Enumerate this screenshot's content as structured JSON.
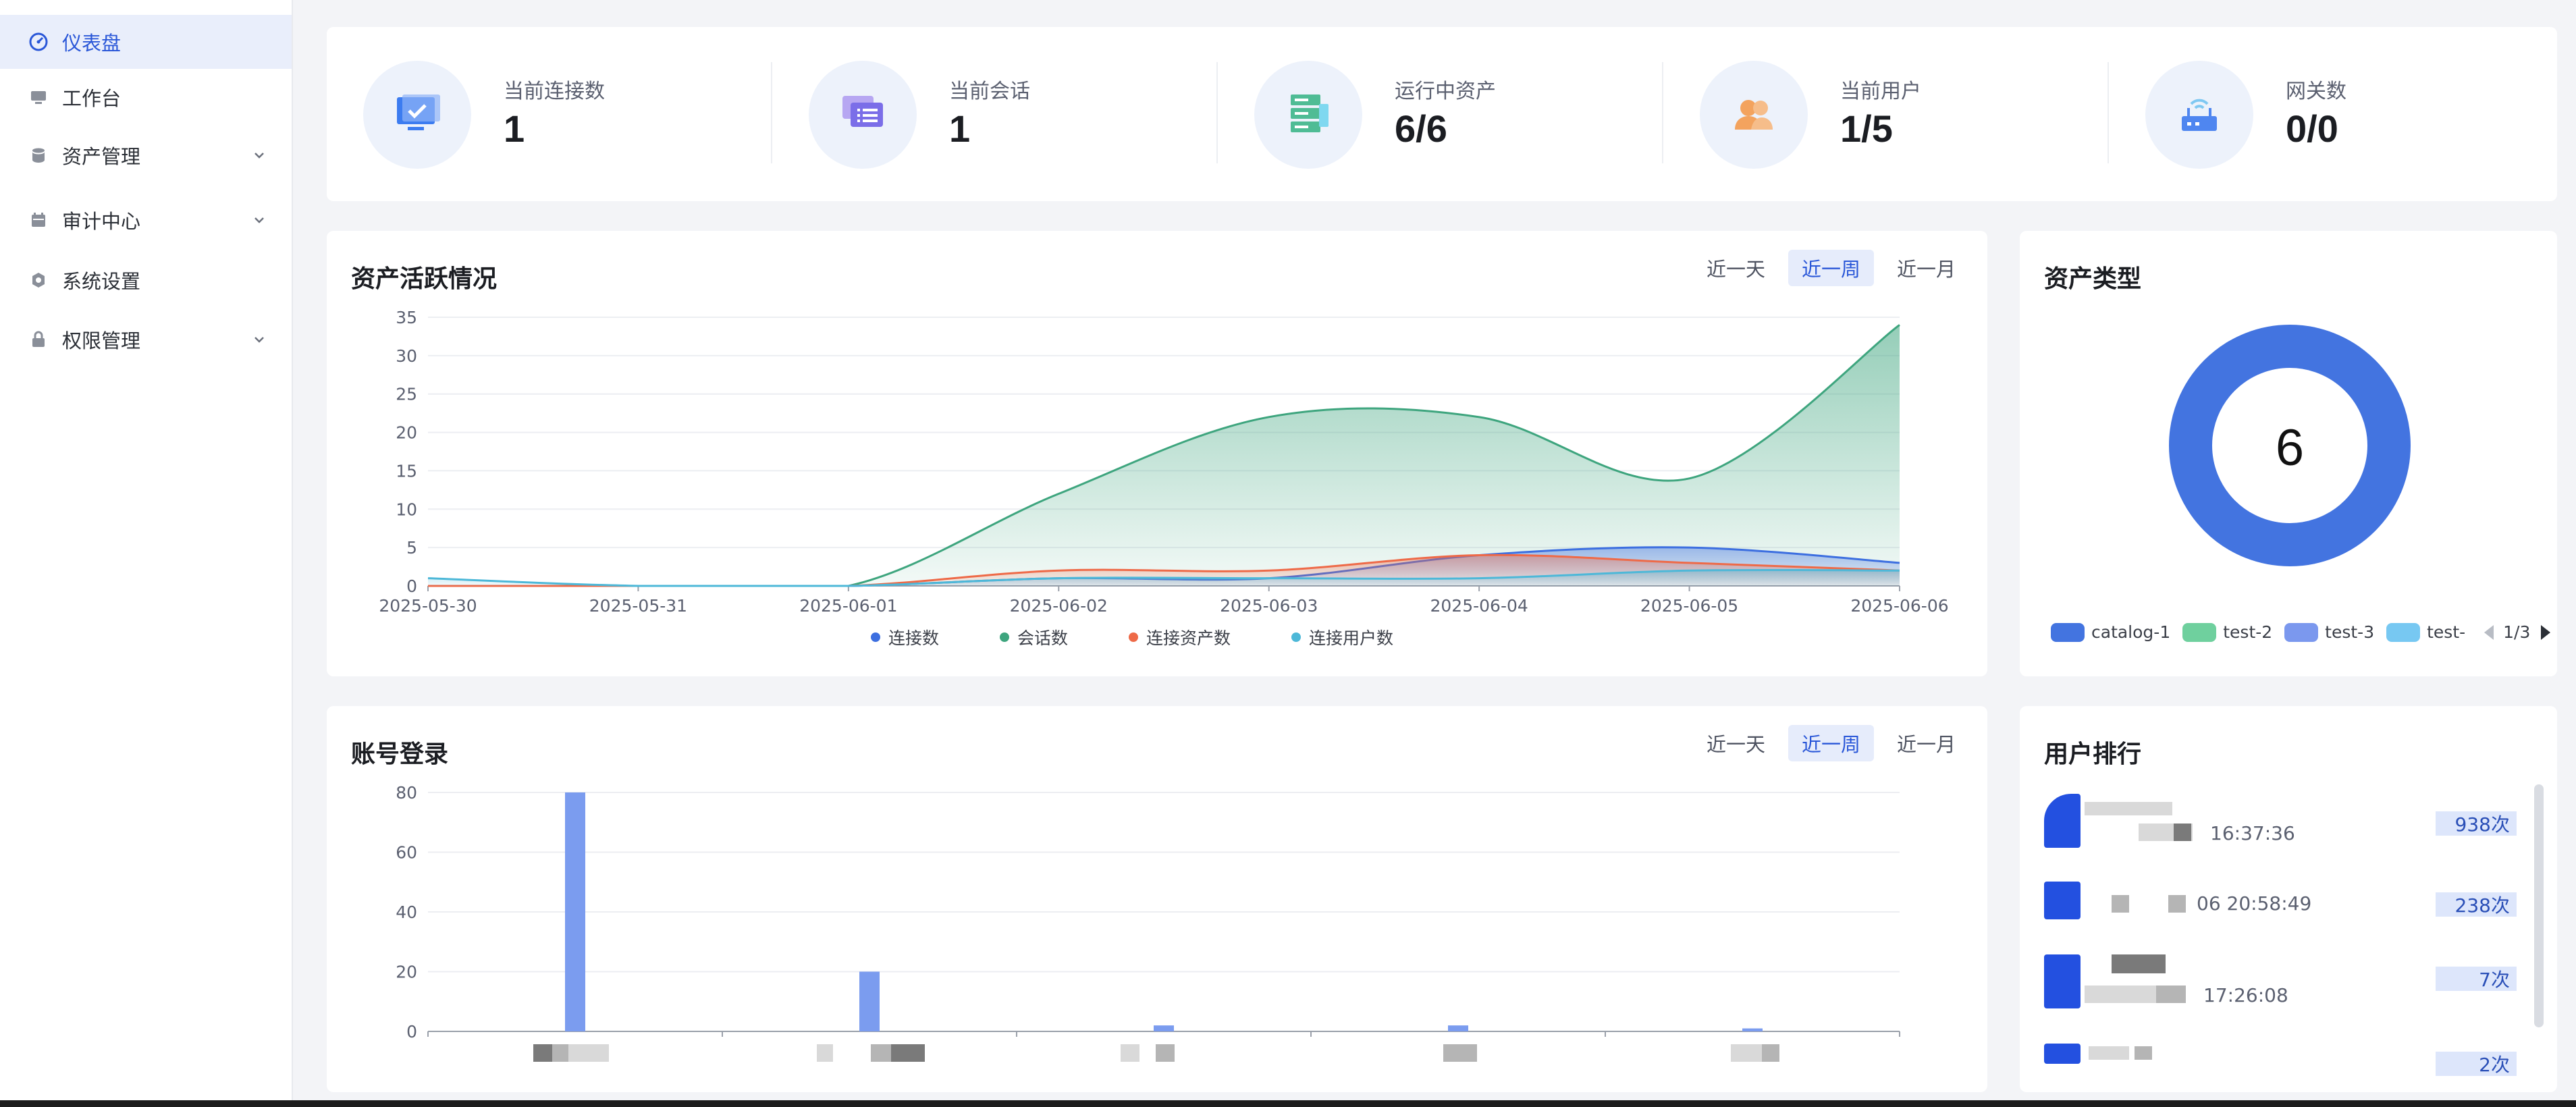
{
  "sidebar": {
    "items": [
      {
        "label": "仪表盘",
        "icon": "dashboard-icon",
        "active": true
      },
      {
        "label": "工作台",
        "icon": "monitor-icon"
      },
      {
        "label": "资产管理",
        "icon": "database-icon",
        "expandable": true
      },
      {
        "label": "审计中心",
        "icon": "calendar-icon",
        "expandable": true
      },
      {
        "label": "系统设置",
        "icon": "gear-icon"
      },
      {
        "label": "权限管理",
        "icon": "lock-icon",
        "expandable": true
      }
    ]
  },
  "stats": [
    {
      "label": "当前连接数",
      "value": "1",
      "icon": "monitor-check-icon"
    },
    {
      "label": "当前会话",
      "value": "1",
      "icon": "chat-icon"
    },
    {
      "label": "运行中资产",
      "value": "6/6",
      "icon": "server-icon"
    },
    {
      "label": "当前用户",
      "value": "1/5",
      "icon": "users-icon"
    },
    {
      "label": "网关数",
      "value": "0/0",
      "icon": "router-icon"
    }
  ],
  "activity": {
    "title": "资产活跃情况",
    "ranges": [
      "近一天",
      "近一周",
      "近一月"
    ],
    "selected_range": "近一周"
  },
  "login": {
    "title": "账号登录",
    "ranges": [
      "近一天",
      "近一周",
      "近一月"
    ],
    "selected_range": "近一周"
  },
  "asset_types": {
    "title": "资产类型",
    "total": "6",
    "pager": "1/3"
  },
  "ranking": {
    "title": "用户排行",
    "rows": [
      {
        "time": "16:37:36",
        "count": "938次"
      },
      {
        "time": "06 20:58:49",
        "count": "238次"
      },
      {
        "time": "17:26:08",
        "count": "7次"
      },
      {
        "time": "",
        "count": "2次"
      }
    ]
  },
  "colors": {
    "primary": "#2a57d8",
    "conn": "#3d6fe0",
    "session": "#3ea57e",
    "conn_asset": "#ee6a48",
    "conn_user": "#4db8d8"
  },
  "chart_data": [
    {
      "type": "area",
      "title": "资产活跃情况",
      "x": [
        "2025-05-30",
        "2025-05-31",
        "2025-06-01",
        "2025-06-02",
        "2025-06-03",
        "2025-06-04",
        "2025-06-05",
        "2025-06-06"
      ],
      "ylim": [
        0,
        35
      ],
      "yticks": [
        0,
        5,
        10,
        15,
        20,
        25,
        30,
        35
      ],
      "grid": true,
      "legend_position": "bottom",
      "series": [
        {
          "name": "连接数",
          "values": [
            0,
            0,
            0,
            1,
            1,
            4,
            5,
            3
          ],
          "color": "#3d6fe0"
        },
        {
          "name": "会话数",
          "values": [
            0,
            0,
            0,
            12,
            22,
            22,
            14,
            34
          ],
          "color": "#3ea57e"
        },
        {
          "name": "连接资产数",
          "values": [
            0,
            0,
            0,
            2,
            2,
            4,
            3,
            2
          ],
          "color": "#ee6a48"
        },
        {
          "name": "连接用户数",
          "values": [
            1,
            0,
            0,
            1,
            1,
            1,
            2,
            2
          ],
          "color": "#4db8d8"
        }
      ]
    },
    {
      "type": "bar",
      "title": "账号登录",
      "categories": [
        "",
        "",
        "",
        "",
        ""
      ],
      "values": [
        80,
        20,
        2,
        2,
        1
      ],
      "ylim": [
        0,
        80
      ],
      "yticks": [
        0,
        20,
        40,
        60,
        80
      ],
      "grid": true,
      "color": "#7b9cef"
    },
    {
      "type": "pie",
      "title": "资产类型",
      "legend_position": "bottom",
      "legend": [
        {
          "name": "catalog-1",
          "color": "#4374e0"
        },
        {
          "name": "test-2",
          "color": "#6fd09e"
        },
        {
          "name": "test-3",
          "color": "#7b98ee"
        },
        {
          "name": "test-",
          "color": "#77c8f2"
        }
      ],
      "values": [
        6
      ],
      "center_label": "6"
    }
  ]
}
